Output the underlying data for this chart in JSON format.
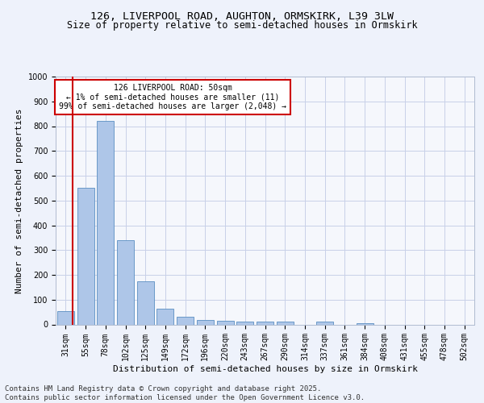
{
  "title_line1": "126, LIVERPOOL ROAD, AUGHTON, ORMSKIRK, L39 3LW",
  "title_line2": "Size of property relative to semi-detached houses in Ormskirk",
  "xlabel": "Distribution of semi-detached houses by size in Ormskirk",
  "ylabel": "Number of semi-detached properties",
  "categories": [
    "31sqm",
    "55sqm",
    "78sqm",
    "102sqm",
    "125sqm",
    "149sqm",
    "172sqm",
    "196sqm",
    "220sqm",
    "243sqm",
    "267sqm",
    "290sqm",
    "314sqm",
    "337sqm",
    "361sqm",
    "384sqm",
    "408sqm",
    "431sqm",
    "455sqm",
    "478sqm",
    "502sqm"
  ],
  "values": [
    55,
    550,
    820,
    340,
    175,
    65,
    32,
    18,
    14,
    11,
    11,
    10,
    0,
    10,
    0,
    5,
    0,
    0,
    0,
    0,
    0
  ],
  "bar_color": "#aec6e8",
  "bar_edge_color": "#5a8fc2",
  "highlight_color": "#cc0000",
  "annotation_text": "126 LIVERPOOL ROAD: 50sqm\n← 1% of semi-detached houses are smaller (11)\n99% of semi-detached houses are larger (2,048) →",
  "annotation_box_color": "#ffffff",
  "annotation_box_edge_color": "#cc0000",
  "ylim": [
    0,
    1000
  ],
  "yticks": [
    0,
    100,
    200,
    300,
    400,
    500,
    600,
    700,
    800,
    900,
    1000
  ],
  "footer_text": "Contains HM Land Registry data © Crown copyright and database right 2025.\nContains public sector information licensed under the Open Government Licence v3.0.",
  "bg_color": "#eef2fb",
  "plot_bg_color": "#f5f7fc",
  "grid_color": "#c8d0e8",
  "title_fontsize": 9.5,
  "subtitle_fontsize": 8.5,
  "axis_label_fontsize": 8,
  "tick_fontsize": 7,
  "footer_fontsize": 6.5
}
